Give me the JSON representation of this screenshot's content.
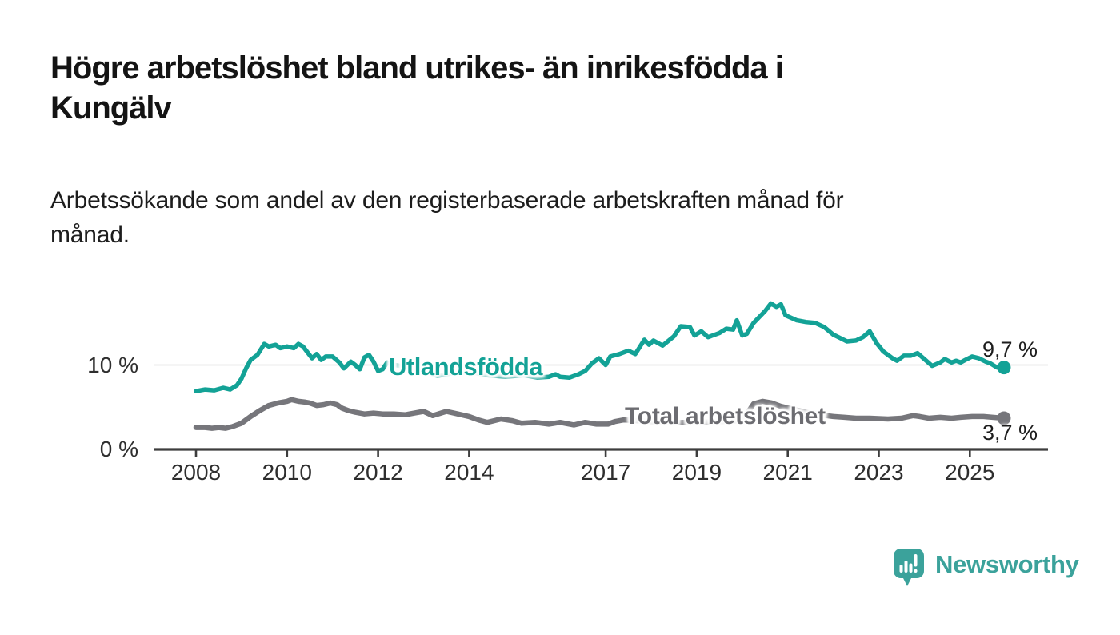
{
  "header": {
    "title_lines": [
      "Högre arbetslöshet bland utrikes- än inrikesfödda i",
      "Kungälv"
    ],
    "subtitle_lines": [
      "Arbetssökande som andel av den registerbaserade arbetskraften månad för",
      "månad."
    ]
  },
  "branding": {
    "name": "Newsworthy",
    "logo_icon": "speech-bubble-bar-chart",
    "logo_color": "#3ba29b"
  },
  "chart_data": {
    "type": "line",
    "title": "Högre arbetslöshet bland utrikes- än inrikesfödda i Kungälv",
    "subtitle": "Arbetssökande som andel av den registerbaserade arbetskraften månad för månad.",
    "unit": "%",
    "x_domain": [
      2007.2,
      2026.7
    ],
    "ylim": [
      0,
      18.2
    ],
    "grid": "horizontal-10-only",
    "legend_position": "inline-on-line",
    "x_ticks": [
      {
        "year": 2008,
        "label": "2008"
      },
      {
        "year": 2010,
        "label": "2010"
      },
      {
        "year": 2012,
        "label": "2012"
      },
      {
        "year": 2014,
        "label": "2014"
      },
      {
        "year": 2017,
        "label": "2017"
      },
      {
        "year": 2019,
        "label": "2019"
      },
      {
        "year": 2021,
        "label": "2021"
      },
      {
        "year": 2023,
        "label": "2023"
      },
      {
        "year": 2025,
        "label": "2025"
      }
    ],
    "y_ticks": [
      {
        "value": 0,
        "label": "0 %",
        "grid": false
      },
      {
        "value": 10,
        "label": "10 %",
        "grid": true
      }
    ],
    "axis_color": "#3d3d3d",
    "grid_color": "#d8d8d8",
    "tick_label_color": "#2e2e2e",
    "series": [
      {
        "name": "Utlandsfödda",
        "label": "Utlandsfödda",
        "color": "#13a296",
        "line_width": 5.5,
        "end_label": "9,7 %",
        "end_value": 9.7,
        "points": [
          [
            2008.0,
            6.9
          ],
          [
            2008.2,
            7.1
          ],
          [
            2008.4,
            7.0
          ],
          [
            2008.6,
            7.3
          ],
          [
            2008.75,
            7.1
          ],
          [
            2008.9,
            7.6
          ],
          [
            2009.0,
            8.4
          ],
          [
            2009.1,
            9.6
          ],
          [
            2009.2,
            10.6
          ],
          [
            2009.35,
            11.2
          ],
          [
            2009.5,
            12.5
          ],
          [
            2009.6,
            12.2
          ],
          [
            2009.75,
            12.4
          ],
          [
            2009.85,
            12.0
          ],
          [
            2010.0,
            12.2
          ],
          [
            2010.15,
            12.0
          ],
          [
            2010.25,
            12.5
          ],
          [
            2010.35,
            12.2
          ],
          [
            2010.45,
            11.5
          ],
          [
            2010.55,
            10.8
          ],
          [
            2010.65,
            11.3
          ],
          [
            2010.75,
            10.6
          ],
          [
            2010.85,
            11.0
          ],
          [
            2011.0,
            11.0
          ],
          [
            2011.15,
            10.3
          ],
          [
            2011.25,
            9.6
          ],
          [
            2011.4,
            10.4
          ],
          [
            2011.5,
            10.0
          ],
          [
            2011.6,
            9.5
          ],
          [
            2011.7,
            10.9
          ],
          [
            2011.8,
            11.2
          ],
          [
            2011.9,
            10.4
          ],
          [
            2012.0,
            9.3
          ],
          [
            2012.1,
            9.5
          ],
          [
            2012.2,
            10.3
          ],
          [
            2012.35,
            10.0
          ],
          [
            2012.5,
            9.9
          ],
          [
            2012.7,
            9.7
          ],
          [
            2013.0,
            9.3
          ],
          [
            2013.3,
            8.7
          ],
          [
            2013.6,
            9.0
          ],
          [
            2014.0,
            9.2
          ],
          [
            2014.4,
            8.8
          ],
          [
            2014.8,
            8.6
          ],
          [
            2015.2,
            8.8
          ],
          [
            2015.5,
            8.5
          ],
          [
            2015.75,
            8.6
          ],
          [
            2015.9,
            8.9
          ],
          [
            2016.0,
            8.6
          ],
          [
            2016.2,
            8.5
          ],
          [
            2016.4,
            8.9
          ],
          [
            2016.55,
            9.3
          ],
          [
            2016.7,
            10.2
          ],
          [
            2016.85,
            10.8
          ],
          [
            2017.0,
            10.0
          ],
          [
            2017.1,
            11.0
          ],
          [
            2017.3,
            11.3
          ],
          [
            2017.5,
            11.7
          ],
          [
            2017.65,
            11.3
          ],
          [
            2017.85,
            13.0
          ],
          [
            2017.95,
            12.4
          ],
          [
            2018.05,
            12.9
          ],
          [
            2018.25,
            12.3
          ],
          [
            2018.5,
            13.4
          ],
          [
            2018.65,
            14.6
          ],
          [
            2018.85,
            14.5
          ],
          [
            2018.95,
            13.5
          ],
          [
            2019.1,
            14.0
          ],
          [
            2019.25,
            13.3
          ],
          [
            2019.5,
            13.8
          ],
          [
            2019.65,
            14.3
          ],
          [
            2019.8,
            14.2
          ],
          [
            2019.88,
            15.3
          ],
          [
            2020.0,
            13.5
          ],
          [
            2020.1,
            13.7
          ],
          [
            2020.25,
            15.0
          ],
          [
            2020.5,
            16.4
          ],
          [
            2020.63,
            17.3
          ],
          [
            2020.75,
            16.9
          ],
          [
            2020.85,
            17.2
          ],
          [
            2020.95,
            15.9
          ],
          [
            2021.2,
            15.3
          ],
          [
            2021.4,
            15.1
          ],
          [
            2021.6,
            15.0
          ],
          [
            2021.8,
            14.5
          ],
          [
            2022.0,
            13.6
          ],
          [
            2022.15,
            13.2
          ],
          [
            2022.3,
            12.8
          ],
          [
            2022.5,
            12.9
          ],
          [
            2022.65,
            13.3
          ],
          [
            2022.8,
            14.0
          ],
          [
            2022.95,
            12.6
          ],
          [
            2023.1,
            11.6
          ],
          [
            2023.3,
            10.8
          ],
          [
            2023.4,
            10.5
          ],
          [
            2023.55,
            11.1
          ],
          [
            2023.7,
            11.1
          ],
          [
            2023.85,
            11.4
          ],
          [
            2024.0,
            10.7
          ],
          [
            2024.17,
            9.9
          ],
          [
            2024.35,
            10.3
          ],
          [
            2024.45,
            10.7
          ],
          [
            2024.6,
            10.3
          ],
          [
            2024.7,
            10.5
          ],
          [
            2024.8,
            10.3
          ],
          [
            2024.9,
            10.6
          ],
          [
            2025.05,
            11.0
          ],
          [
            2025.2,
            10.8
          ],
          [
            2025.35,
            10.4
          ],
          [
            2025.45,
            10.2
          ],
          [
            2025.6,
            9.7
          ],
          [
            2025.75,
            9.7
          ]
        ]
      },
      {
        "name": "Total arbetslöshet",
        "label": "Total arbetslöshet",
        "color": "#76767b",
        "line_width": 6.5,
        "end_label": "3,7 %",
        "end_value": 3.7,
        "points": [
          [
            2008.0,
            2.6
          ],
          [
            2008.2,
            2.6
          ],
          [
            2008.35,
            2.5
          ],
          [
            2008.5,
            2.6
          ],
          [
            2008.65,
            2.5
          ],
          [
            2008.8,
            2.7
          ],
          [
            2009.0,
            3.1
          ],
          [
            2009.2,
            3.9
          ],
          [
            2009.4,
            4.6
          ],
          [
            2009.6,
            5.2
          ],
          [
            2009.8,
            5.5
          ],
          [
            2010.0,
            5.7
          ],
          [
            2010.1,
            5.9
          ],
          [
            2010.25,
            5.7
          ],
          [
            2010.4,
            5.6
          ],
          [
            2010.5,
            5.5
          ],
          [
            2010.65,
            5.2
          ],
          [
            2010.8,
            5.3
          ],
          [
            2010.95,
            5.5
          ],
          [
            2011.1,
            5.3
          ],
          [
            2011.2,
            4.9
          ],
          [
            2011.35,
            4.6
          ],
          [
            2011.5,
            4.4
          ],
          [
            2011.7,
            4.2
          ],
          [
            2011.9,
            4.3
          ],
          [
            2012.1,
            4.2
          ],
          [
            2012.35,
            4.2
          ],
          [
            2012.6,
            4.1
          ],
          [
            2012.8,
            4.3
          ],
          [
            2013.0,
            4.5
          ],
          [
            2013.2,
            4.0
          ],
          [
            2013.5,
            4.5
          ],
          [
            2013.75,
            4.2
          ],
          [
            2014.0,
            3.9
          ],
          [
            2014.2,
            3.5
          ],
          [
            2014.4,
            3.2
          ],
          [
            2014.7,
            3.6
          ],
          [
            2014.95,
            3.4
          ],
          [
            2015.15,
            3.1
          ],
          [
            2015.45,
            3.2
          ],
          [
            2015.75,
            3.0
          ],
          [
            2016.0,
            3.2
          ],
          [
            2016.3,
            2.9
          ],
          [
            2016.55,
            3.2
          ],
          [
            2016.8,
            3.0
          ],
          [
            2017.05,
            3.0
          ],
          [
            2017.2,
            3.3
          ],
          [
            2017.4,
            3.5
          ],
          [
            2017.7,
            3.4
          ],
          [
            2018.0,
            3.3
          ],
          [
            2018.5,
            3.2
          ],
          [
            2019.0,
            3.2
          ],
          [
            2019.5,
            3.3
          ],
          [
            2019.9,
            3.4
          ],
          [
            2020.1,
            4.2
          ],
          [
            2020.25,
            5.4
          ],
          [
            2020.45,
            5.7
          ],
          [
            2020.65,
            5.5
          ],
          [
            2020.85,
            5.1
          ],
          [
            2021.1,
            4.8
          ],
          [
            2021.4,
            4.4
          ],
          [
            2021.7,
            4.1
          ],
          [
            2022.0,
            3.9
          ],
          [
            2022.25,
            3.8
          ],
          [
            2022.5,
            3.7
          ],
          [
            2022.8,
            3.7
          ],
          [
            2023.2,
            3.6
          ],
          [
            2023.5,
            3.7
          ],
          [
            2023.75,
            4.0
          ],
          [
            2023.9,
            3.9
          ],
          [
            2024.1,
            3.7
          ],
          [
            2024.35,
            3.8
          ],
          [
            2024.6,
            3.7
          ],
          [
            2024.8,
            3.8
          ],
          [
            2025.05,
            3.9
          ],
          [
            2025.3,
            3.9
          ],
          [
            2025.5,
            3.8
          ],
          [
            2025.75,
            3.7
          ]
        ]
      }
    ]
  }
}
